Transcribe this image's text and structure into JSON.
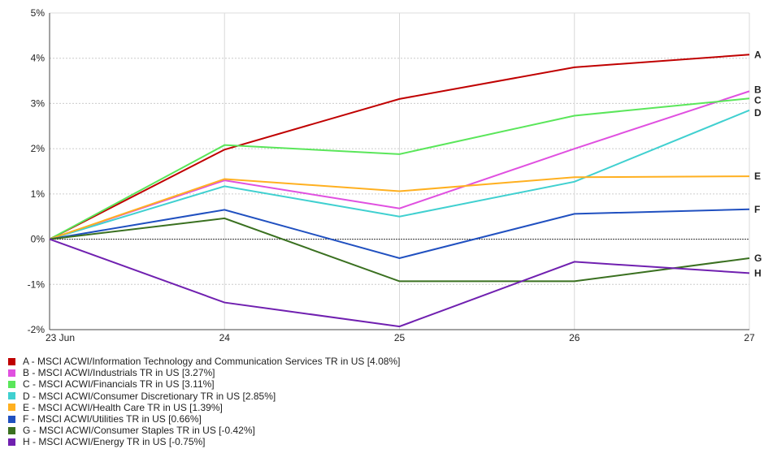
{
  "chart_data": {
    "type": "line",
    "x": [
      "23 Jun",
      "24",
      "25",
      "26",
      "27"
    ],
    "ylim": [
      -2,
      5
    ],
    "yticks": [
      "-2%",
      "-1%",
      "0%",
      "1%",
      "2%",
      "3%",
      "4%",
      "5%"
    ],
    "grid": true,
    "legend_position": "bottom",
    "series": [
      {
        "label": "A",
        "name": "A - MSCI ACWI/Information Technology and Communication Services TR in US [4.08%]",
        "color": "#c00000",
        "values": [
          0,
          1.98,
          3.1,
          3.8,
          4.08
        ]
      },
      {
        "label": "B",
        "name": "B - MSCI ACWI/Industrials TR in US [3.27%]",
        "color": "#e050e0",
        "values": [
          0,
          1.3,
          0.68,
          2.0,
          3.27
        ]
      },
      {
        "label": "C",
        "name": "C - MSCI ACWI/Financials TR in US [3.11%]",
        "color": "#5ae65a",
        "values": [
          0,
          2.08,
          1.88,
          2.73,
          3.11
        ]
      },
      {
        "label": "D",
        "name": "D - MSCI ACWI/Consumer Discretionary TR in US [2.85%]",
        "color": "#40d0d0",
        "values": [
          0,
          1.17,
          0.5,
          1.27,
          2.85
        ]
      },
      {
        "label": "E",
        "name": "E - MSCI ACWI/Health Care TR in US [1.39%]",
        "color": "#ffb020",
        "values": [
          0,
          1.33,
          1.06,
          1.37,
          1.39
        ]
      },
      {
        "label": "F",
        "name": "F - MSCI ACWI/Utilities TR in US [0.66%]",
        "color": "#2050c0",
        "values": [
          0,
          0.65,
          -0.42,
          0.56,
          0.66
        ]
      },
      {
        "label": "G",
        "name": "G - MSCI ACWI/Consumer Staples TR in US [-0.42%]",
        "color": "#3a7020",
        "values": [
          0,
          0.46,
          -0.93,
          -0.93,
          -0.42
        ]
      },
      {
        "label": "H",
        "name": "H - MSCI ACWI/Energy TR in US [-0.75%]",
        "color": "#7020b0",
        "values": [
          0,
          -1.4,
          -1.93,
          -0.5,
          -0.75
        ]
      }
    ]
  }
}
